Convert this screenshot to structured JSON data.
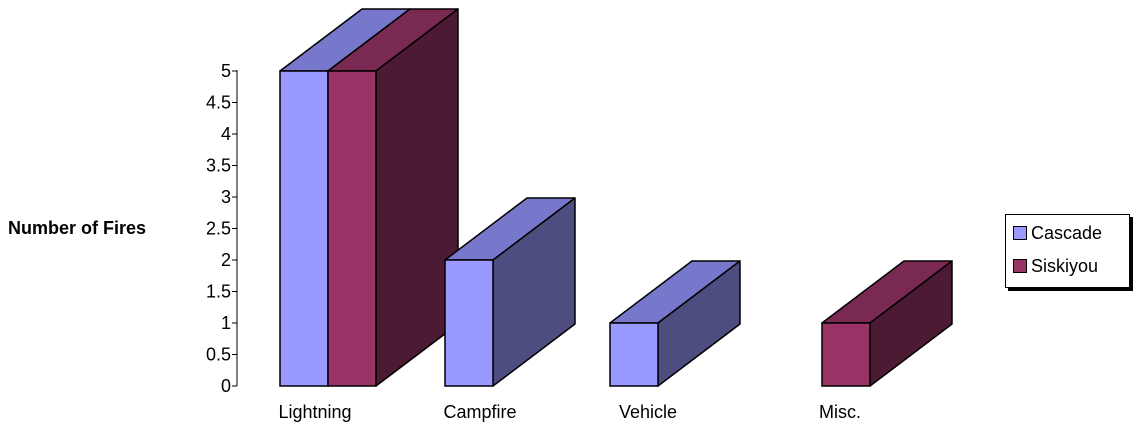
{
  "chart_data": {
    "type": "bar",
    "title": "",
    "xlabel": "",
    "ylabel": "Number of Fires",
    "categories": [
      "Lightning",
      "Campfire",
      "Vehicle",
      "Misc."
    ],
    "series": [
      {
        "name": "Cascade",
        "values": [
          5,
          2,
          1,
          0
        ]
      },
      {
        "name": "Siskiyou",
        "values": [
          5,
          0,
          0,
          1
        ]
      }
    ],
    "ylim": [
      0,
      5
    ],
    "yticks": [
      "0",
      "0.5",
      "1",
      "1.5",
      "2",
      "2.5",
      "3",
      "3.5",
      "4",
      "4.5",
      "5"
    ],
    "legend_position": "right",
    "three_d": true,
    "grid": false
  },
  "colors": {
    "Cascade": {
      "front": "#9999ff",
      "top": "#7777cc",
      "side": "#4d4d80"
    },
    "Siskiyou": {
      "front": "#993366",
      "top": "#7a2952",
      "side": "#4d1a33"
    }
  }
}
